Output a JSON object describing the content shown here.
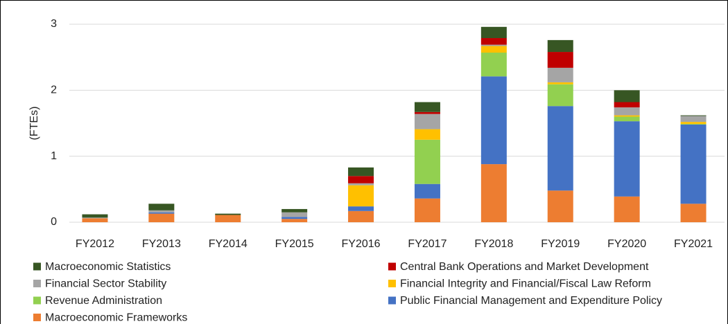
{
  "chart_data": {
    "type": "stacked_bar",
    "y_label": "(FTEs)",
    "categories": [
      "FY2012",
      "FY2013",
      "FY2014",
      "FY2015",
      "FY2016",
      "FY2017",
      "FY2018",
      "FY2019",
      "FY2020",
      "FY2021"
    ],
    "series": [
      {
        "name": "Macroeconomic Frameworks",
        "color": "#ed7d31",
        "values": [
          0.06,
          0.13,
          0.11,
          0.05,
          0.17,
          0.36,
          0.88,
          0.48,
          0.39,
          0.28
        ]
      },
      {
        "name": "Public Financial Management and Expenditure Policy",
        "color": "#4472c4",
        "values": [
          0,
          0.02,
          0,
          0.03,
          0.07,
          0.22,
          1.33,
          1.28,
          1.14,
          1.2
        ]
      },
      {
        "name": "Revenue Administration",
        "color": "#92d050",
        "values": [
          0,
          0,
          0,
          0,
          0,
          0.67,
          0.36,
          0.33,
          0.07,
          0.01
        ]
      },
      {
        "name": "Financial Integrity and Financial/Fiscal Law Reform",
        "color": "#ffc000",
        "values": [
          0,
          0,
          0,
          0,
          0.32,
          0.16,
          0.1,
          0.03,
          0.02,
          0.03
        ]
      },
      {
        "name": "Financial Sector Stability",
        "color": "#a5a5a5",
        "values": [
          0.01,
          0.03,
          0,
          0.07,
          0.03,
          0.23,
          0.02,
          0.22,
          0.12,
          0.09
        ]
      },
      {
        "name": "Central Bank Operations and Market Development",
        "color": "#c00000",
        "values": [
          0,
          0,
          0,
          0,
          0.11,
          0.03,
          0.1,
          0.24,
          0.08,
          0
        ]
      },
      {
        "name": "Macroeconomic Statistics",
        "color": "#375623",
        "values": [
          0.05,
          0.1,
          0.02,
          0.05,
          0.13,
          0.15,
          0.17,
          0.18,
          0.18,
          0.01
        ]
      }
    ],
    "ylim": [
      0,
      3
    ],
    "yticks": [
      0,
      1,
      2,
      3
    ],
    "grid": true
  }
}
